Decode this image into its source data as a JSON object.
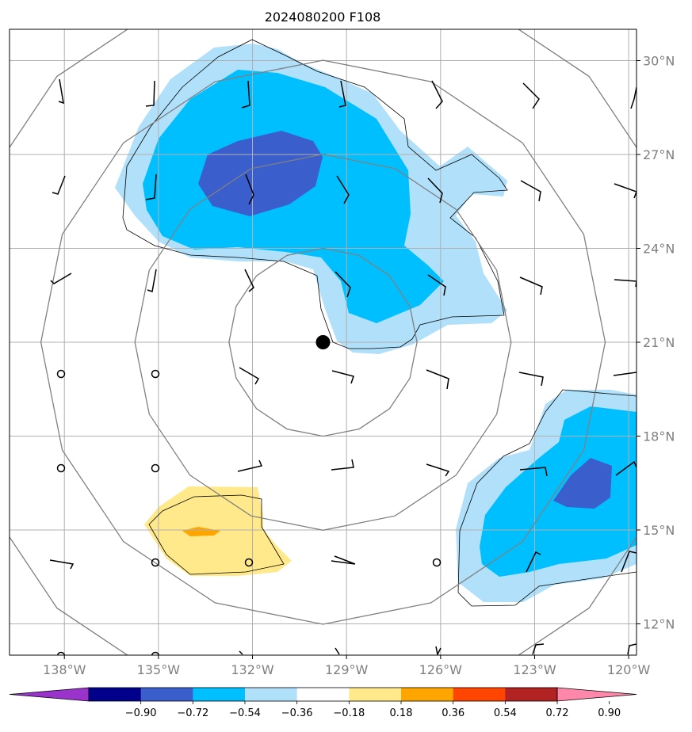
{
  "title": "2024080200 F108",
  "map": {
    "extent": {
      "lon": [
        -139.75,
        -119.75
      ],
      "lat": [
        11,
        31
      ]
    },
    "lon_ticks": [
      {
        "value": -138,
        "label": "138°W"
      },
      {
        "value": -135,
        "label": "135°W"
      },
      {
        "value": -132,
        "label": "132°W"
      },
      {
        "value": -129,
        "label": "129°W"
      },
      {
        "value": -126,
        "label": "126°W"
      },
      {
        "value": -123,
        "label": "123°W"
      },
      {
        "value": -120,
        "label": "120°W"
      }
    ],
    "lat_ticks": [
      {
        "value": 30,
        "label": "30°N"
      },
      {
        "value": 27,
        "label": "27°N"
      },
      {
        "value": 24,
        "label": "24°N"
      },
      {
        "value": 21,
        "label": "21°N"
      },
      {
        "value": 18,
        "label": "18°N"
      },
      {
        "value": 15,
        "label": "15°N"
      },
      {
        "value": 12,
        "label": "12°N"
      }
    ],
    "gridlines": true,
    "storm_center": {
      "lon": -129.75,
      "lat": 21
    },
    "range_rings_deg": [
      3,
      6,
      9,
      12
    ],
    "colors": {
      "ring": "#808080",
      "grid": "#b0b0b0",
      "contour": "#000000"
    }
  },
  "colorbar": {
    "labels": [
      "−0.90",
      "−0.72",
      "−0.54",
      "−0.36",
      "−0.18",
      "0.18",
      "0.36",
      "0.54",
      "0.72",
      "0.90"
    ],
    "colors": [
      "#9933cc",
      "#00008b",
      "#3a5fcd",
      "#00bfff",
      "#b0e0fa",
      "#ffffff",
      "#ffe98a",
      "#ffa500",
      "#ff4500",
      "#b22222",
      "#ff88aa"
    ]
  }
}
